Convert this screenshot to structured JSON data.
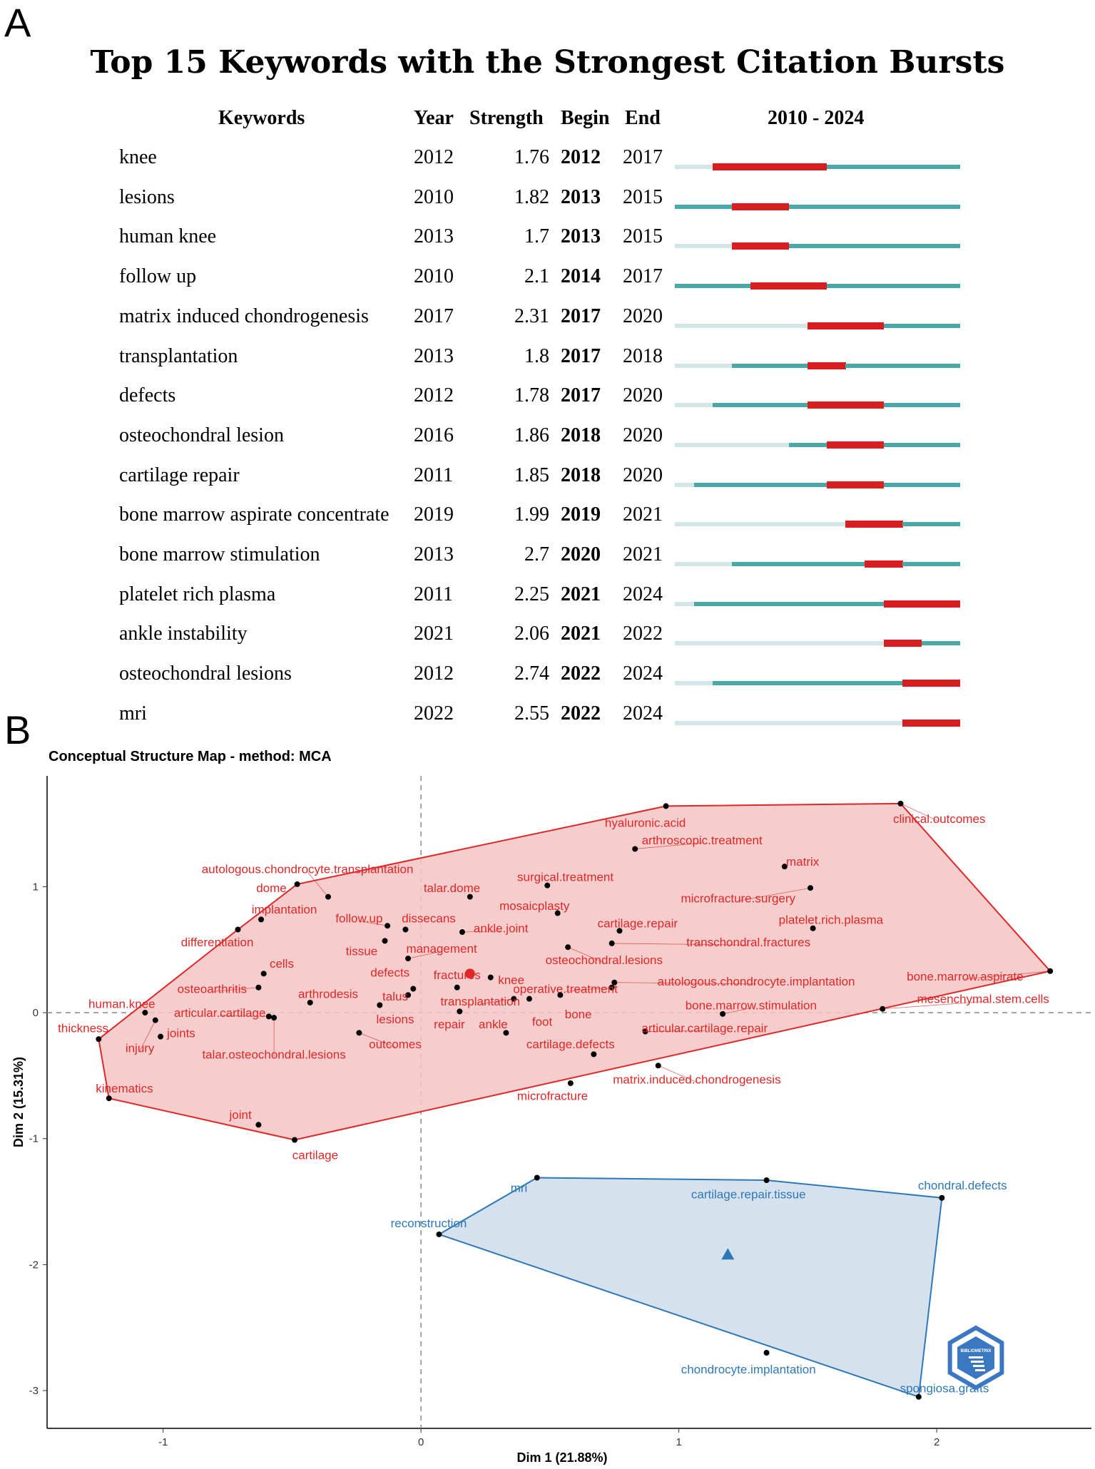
{
  "panel_a": {
    "letter": "A",
    "title": "Top 15 Keywords with the Strongest Citation Bursts",
    "headers": {
      "keywords": "Keywords",
      "year": "Year",
      "strength": "Strength",
      "begin": "Begin",
      "end": "End",
      "range": "2010 - 2024"
    },
    "colors": {
      "burst": "#d81e1e",
      "active": "#4aa8a8",
      "inactive": "#d2e6ea"
    },
    "rows": [
      {
        "keyword": "knee",
        "year": "2012",
        "strength": "1.76",
        "begin": "2012",
        "end": "2017"
      },
      {
        "keyword": "lesions",
        "year": "2010",
        "strength": "1.82",
        "begin": "2013",
        "end": "2015"
      },
      {
        "keyword": "human knee",
        "year": "2013",
        "strength": "1.7",
        "begin": "2013",
        "end": "2015"
      },
      {
        "keyword": "follow up",
        "year": "2010",
        "strength": "2.1",
        "begin": "2014",
        "end": "2017"
      },
      {
        "keyword": "matrix induced chondrogenesis",
        "year": "2017",
        "strength": "2.31",
        "begin": "2017",
        "end": "2020"
      },
      {
        "keyword": "transplantation",
        "year": "2013",
        "strength": "1.8",
        "begin": "2017",
        "end": "2018"
      },
      {
        "keyword": "defects",
        "year": "2012",
        "strength": "1.78",
        "begin": "2017",
        "end": "2020"
      },
      {
        "keyword": "osteochondral lesion",
        "year": "2016",
        "strength": "1.86",
        "begin": "2018",
        "end": "2020"
      },
      {
        "keyword": "cartilage repair",
        "year": "2011",
        "strength": "1.85",
        "begin": "2018",
        "end": "2020"
      },
      {
        "keyword": "bone marrow aspirate concentrate",
        "year": "2019",
        "strength": "1.99",
        "begin": "2019",
        "end": "2021"
      },
      {
        "keyword": "bone marrow stimulation",
        "year": "2013",
        "strength": "2.7",
        "begin": "2020",
        "end": "2021"
      },
      {
        "keyword": "platelet rich plasma",
        "year": "2011",
        "strength": "2.25",
        "begin": "2021",
        "end": "2024"
      },
      {
        "keyword": "ankle instability",
        "year": "2021",
        "strength": "2.06",
        "begin": "2021",
        "end": "2022"
      },
      {
        "keyword": "osteochondral lesions",
        "year": "2012",
        "strength": "2.74",
        "begin": "2022",
        "end": "2024"
      },
      {
        "keyword": "mri",
        "year": "2022",
        "strength": "2.55",
        "begin": "2022",
        "end": "2024"
      }
    ]
  },
  "panel_b": {
    "letter": "B",
    "title": "Conceptual Structure Map - method: MCA"
  },
  "chart_data": {
    "type": "scatter",
    "title": "Conceptual Structure Map - method: MCA",
    "xlabel": "Dim 1 (21.88%)",
    "ylabel": "Dim 2 (15.31%)",
    "xlim": [
      -1.45,
      2.6
    ],
    "ylim": [
      -3.3,
      1.88
    ],
    "xticks": [
      -1,
      0,
      1,
      2
    ],
    "yticks": [
      -3,
      -2,
      -1,
      0,
      1
    ],
    "colors": {
      "cluster1": "#e02626",
      "cluster1_fill": "#f5c4c4",
      "cluster2": "#2e78b7",
      "cluster2_fill": "#cfdceb"
    },
    "watermark": "BIBLIOMETRIX",
    "clusters": [
      {
        "name": "cluster 1",
        "color_key": "cluster1",
        "centroid": [
          0.19,
          0.31
        ],
        "hull": [
          "hyaluronic.acid",
          "clinical.outcomes",
          "bone.marrow.aspirate",
          "cartilage",
          "kinematics",
          "thickness",
          "differentiation",
          "dome"
        ],
        "points": [
          {
            "name": "hyaluronic.acid",
            "x": 0.95,
            "y": 1.64,
            "lx": 0.87,
            "ly": 1.51
          },
          {
            "name": "clinical.outcomes",
            "x": 1.86,
            "y": 1.66,
            "lx": 2.01,
            "ly": 1.54
          },
          {
            "name": "arthroscopic.treatment",
            "x": 0.83,
            "y": 1.3,
            "lx": 1.09,
            "ly": 1.37
          },
          {
            "name": "matrix",
            "x": 1.41,
            "y": 1.16,
            "lx": 1.48,
            "ly": 1.2
          },
          {
            "name": "autologous.chondrocyte.transplantation",
            "x": -0.36,
            "y": 0.92,
            "lx": -0.44,
            "ly": 1.14
          },
          {
            "name": "surgical.treatment",
            "x": 0.49,
            "y": 1.01,
            "lx": 0.56,
            "ly": 1.08
          },
          {
            "name": "talar.dome",
            "x": 0.19,
            "y": 0.92,
            "lx": 0.12,
            "ly": 0.99
          },
          {
            "name": "dome",
            "x": -0.48,
            "y": 1.02,
            "lx": -0.58,
            "ly": 0.99
          },
          {
            "name": "microfracture.surgery",
            "x": 1.51,
            "y": 0.99,
            "lx": 1.23,
            "ly": 0.91
          },
          {
            "name": "mosaicplasty",
            "x": 0.53,
            "y": 0.79,
            "lx": 0.44,
            "ly": 0.85
          },
          {
            "name": "follow.up",
            "x": -0.13,
            "y": 0.69,
            "lx": -0.24,
            "ly": 0.75
          },
          {
            "name": "dissecans",
            "x": -0.06,
            "y": 0.66,
            "lx": 0.03,
            "ly": 0.75
          },
          {
            "name": "implantation",
            "x": -0.62,
            "y": 0.74,
            "lx": -0.53,
            "ly": 0.82
          },
          {
            "name": "cartilage.repair",
            "x": 0.77,
            "y": 0.65,
            "lx": 0.84,
            "ly": 0.71
          },
          {
            "name": "platelet.rich.plasma",
            "x": 1.52,
            "y": 0.67,
            "lx": 1.59,
            "ly": 0.74
          },
          {
            "name": "ankle.joint",
            "x": 0.16,
            "y": 0.64,
            "lx": 0.31,
            "ly": 0.67
          },
          {
            "name": "differentiation",
            "x": -0.71,
            "y": 0.66,
            "lx": -0.79,
            "ly": 0.56
          },
          {
            "name": "transchondral.fractures",
            "x": 0.74,
            "y": 0.55,
            "lx": 1.27,
            "ly": 0.56
          },
          {
            "name": "tissue",
            "x": -0.14,
            "y": 0.57,
            "lx": -0.23,
            "ly": 0.49
          },
          {
            "name": "management",
            "x": -0.05,
            "y": 0.43,
            "lx": 0.08,
            "ly": 0.51
          },
          {
            "name": "cells",
            "x": -0.61,
            "y": 0.31,
            "lx": -0.54,
            "ly": 0.39
          },
          {
            "name": "defects",
            "x": -0.03,
            "y": 0.19,
            "lx": -0.12,
            "ly": 0.32
          },
          {
            "name": "osteochondral.lesions",
            "x": 0.57,
            "y": 0.52,
            "lx": 0.71,
            "ly": 0.42
          },
          {
            "name": "fractures",
            "x": 0.14,
            "y": 0.2,
            "lx": 0.14,
            "ly": 0.3
          },
          {
            "name": "knee",
            "x": 0.27,
            "y": 0.28,
            "lx": 0.35,
            "ly": 0.26
          },
          {
            "name": "autologous.chondrocyte.implantation",
            "x": 0.75,
            "y": 0.24,
            "lx": 1.3,
            "ly": 0.25
          },
          {
            "name": "bone.marrow.aspirate",
            "x": 2.44,
            "y": 0.33,
            "lx": 2.11,
            "ly": 0.29
          },
          {
            "name": "osteoarthritis",
            "x": -0.63,
            "y": 0.2,
            "lx": -0.81,
            "ly": 0.19
          },
          {
            "name": "arthrodesis",
            "x": -0.43,
            "y": 0.08,
            "lx": -0.36,
            "ly": 0.15
          },
          {
            "name": "talus",
            "x": -0.05,
            "y": 0.14,
            "lx": -0.1,
            "ly": 0.13
          },
          {
            "name": "operative.treatment",
            "x": 0.74,
            "y": 0.2,
            "lx": 0.56,
            "ly": 0.19
          },
          {
            "name": "transplantation",
            "x": 0.36,
            "y": 0.11,
            "lx": 0.23,
            "ly": 0.09
          },
          {
            "name": "mesenchymal.stem.cells",
            "x": 1.79,
            "y": 0.03,
            "lx": 2.18,
            "ly": 0.11
          },
          {
            "name": "human.knee",
            "x": -1.07,
            "y": 0.0,
            "lx": -1.16,
            "ly": 0.07
          },
          {
            "name": "bone.marrow.stimulation",
            "x": 1.17,
            "y": -0.01,
            "lx": 1.28,
            "ly": 0.06
          },
          {
            "name": "articular.cartilage",
            "x": -0.59,
            "y": -0.03,
            "lx": -0.78,
            "ly": 0.0
          },
          {
            "name": "lesions",
            "x": -0.16,
            "y": 0.06,
            "lx": -0.1,
            "ly": -0.05
          },
          {
            "name": "foot",
            "x": 0.42,
            "y": 0.11,
            "lx": 0.47,
            "ly": -0.07
          },
          {
            "name": "bone",
            "x": 0.54,
            "y": 0.14,
            "lx": 0.61,
            "ly": -0.01
          },
          {
            "name": "repair",
            "x": 0.15,
            "y": 0.01,
            "lx": 0.11,
            "ly": -0.09
          },
          {
            "name": "ankle",
            "x": 0.33,
            "y": -0.16,
            "lx": 0.28,
            "ly": -0.09
          },
          {
            "name": "thickness",
            "x": -1.25,
            "y": -0.21,
            "lx": -1.31,
            "ly": -0.12
          },
          {
            "name": "joints",
            "x": -1.01,
            "y": -0.19,
            "lx": -0.93,
            "ly": -0.16
          },
          {
            "name": "injury",
            "x": -1.03,
            "y": -0.06,
            "lx": -1.09,
            "ly": -0.28
          },
          {
            "name": "articular.cartilage.repair",
            "x": 0.87,
            "y": -0.15,
            "lx": 1.1,
            "ly": -0.12
          },
          {
            "name": "outcomes",
            "x": -0.24,
            "y": -0.16,
            "lx": -0.1,
            "ly": -0.25
          },
          {
            "name": "cartilage.defects",
            "x": 0.67,
            "y": -0.33,
            "lx": 0.58,
            "ly": -0.25
          },
          {
            "name": "talar.osteochondral.lesions",
            "x": -0.57,
            "y": -0.04,
            "lx": -0.57,
            "ly": -0.33
          },
          {
            "name": "matrix.induced.chondrogenesis",
            "x": 0.92,
            "y": -0.42,
            "lx": 1.07,
            "ly": -0.53
          },
          {
            "name": "microfracture",
            "x": 0.58,
            "y": -0.56,
            "lx": 0.51,
            "ly": -0.66
          },
          {
            "name": "kinematics",
            "x": -1.21,
            "y": -0.68,
            "lx": -1.15,
            "ly": -0.6
          },
          {
            "name": "joint",
            "x": -0.63,
            "y": -0.89,
            "lx": -0.7,
            "ly": -0.81
          },
          {
            "name": "cartilage",
            "x": -0.49,
            "y": -1.01,
            "lx": -0.41,
            "ly": -1.13
          }
        ]
      },
      {
        "name": "cluster 2",
        "color_key": "cluster2",
        "centroid": [
          1.19,
          -1.92
        ],
        "hull": [
          "mri",
          "cartilage.repair.tissue",
          "chondral.defects",
          "spongiosa.grafts",
          "reconstruction"
        ],
        "points": [
          {
            "name": "mri",
            "x": 0.45,
            "y": -1.31,
            "lx": 0.38,
            "ly": -1.39
          },
          {
            "name": "cartilage.repair.tissue",
            "x": 1.34,
            "y": -1.33,
            "lx": 1.27,
            "ly": -1.44
          },
          {
            "name": "chondral.defects",
            "x": 2.02,
            "y": -1.47,
            "lx": 2.1,
            "ly": -1.37
          },
          {
            "name": "reconstruction",
            "x": 0.07,
            "y": -1.76,
            "lx": 0.03,
            "ly": -1.67
          },
          {
            "name": "chondrocyte.implantation",
            "x": 1.34,
            "y": -2.7,
            "lx": 1.27,
            "ly": -2.83
          },
          {
            "name": "spongiosa.grafts",
            "x": 1.93,
            "y": -3.05,
            "lx": 2.03,
            "ly": -2.98
          }
        ]
      }
    ]
  }
}
